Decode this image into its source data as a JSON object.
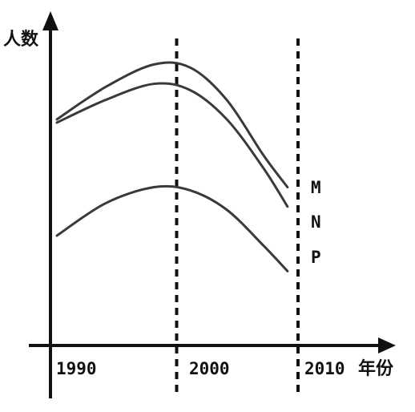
{
  "chart_data": {
    "type": "line",
    "ylabel": "人数",
    "xlabel": "年份",
    "x_ticks": [
      "1990",
      "2000",
      "2010"
    ],
    "xlim": [
      1990,
      2010
    ],
    "reference_lines": [
      2000,
      2010
    ],
    "series": [
      {
        "name": "M",
        "x": [
          1990,
          1994,
          1998,
          2001,
          2004,
          2007,
          2009
        ],
        "y": [
          0.7,
          0.8,
          0.87,
          0.86,
          0.76,
          0.59,
          0.49
        ]
      },
      {
        "name": "N",
        "x": [
          1990,
          1994,
          1998,
          2001,
          2004,
          2007,
          2009
        ],
        "y": [
          0.69,
          0.76,
          0.81,
          0.79,
          0.7,
          0.55,
          0.43
        ]
      },
      {
        "name": "P",
        "x": [
          1990,
          1994,
          1998,
          2001,
          2004,
          2007,
          2009
        ],
        "y": [
          0.34,
          0.44,
          0.49,
          0.48,
          0.42,
          0.31,
          0.23
        ]
      }
    ]
  },
  "colors": {
    "ink": "#222222",
    "curve": "#3a3a3a"
  }
}
